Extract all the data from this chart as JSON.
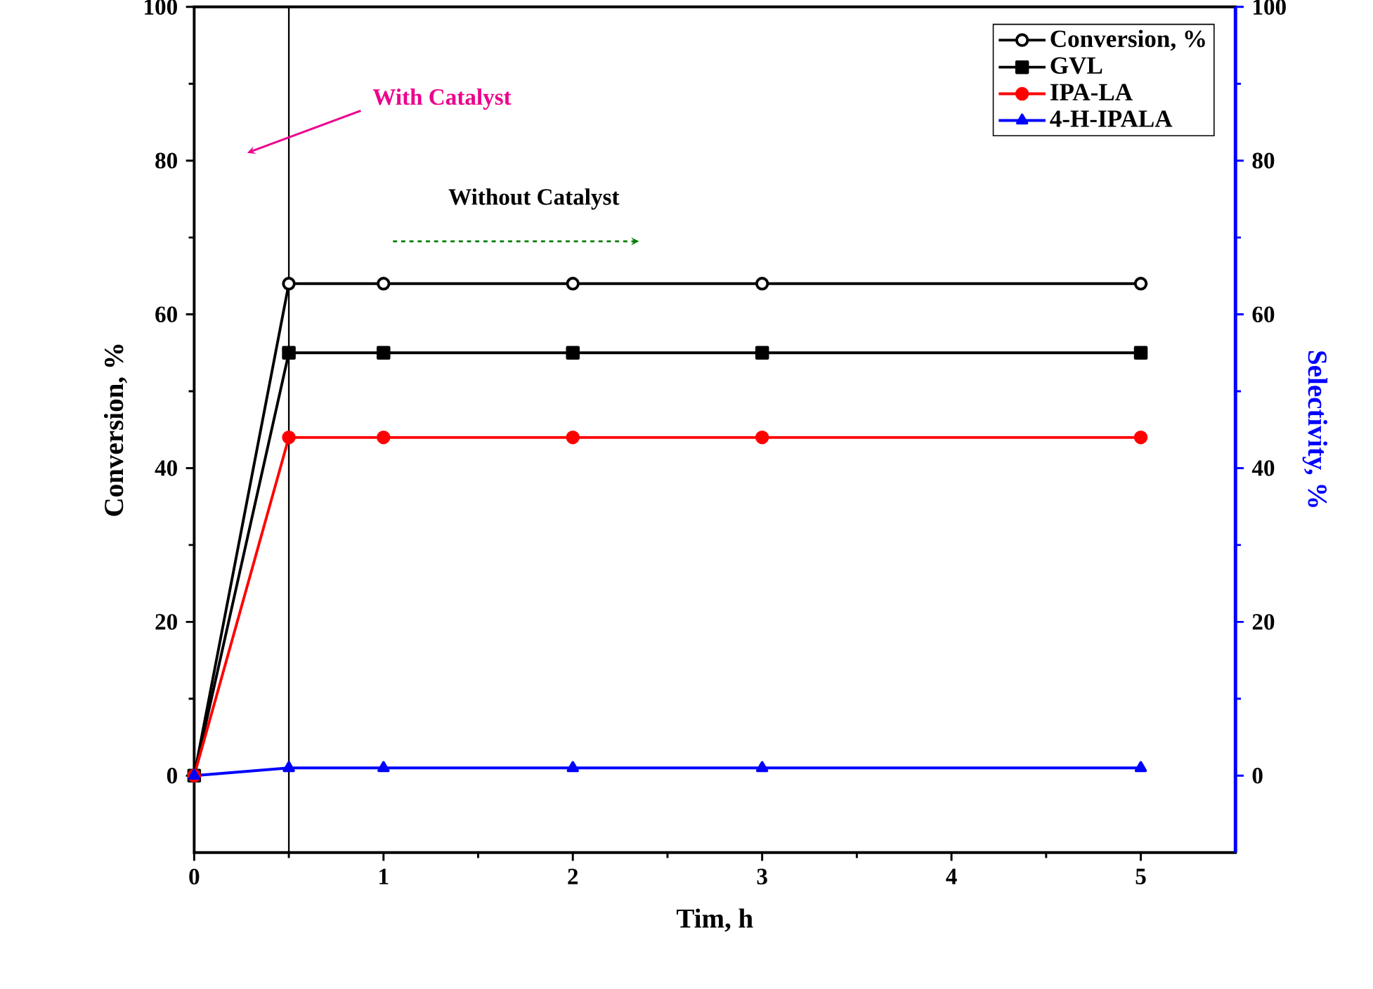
{
  "chart_data": {
    "type": "line",
    "xlabel": "Tim, h",
    "ylabel": "Conversion, %",
    "y2label": "Selectivity, %",
    "x": [
      0,
      0.5,
      1,
      2,
      3,
      5
    ],
    "series": [
      {
        "name": "Conversion, %",
        "color": "#000000",
        "marker": "circle",
        "axis": "y",
        "values": [
          0,
          64,
          64,
          64,
          64,
          64
        ]
      },
      {
        "name": "GVL",
        "color": "#000000",
        "marker": "square",
        "axis": "y2",
        "values": [
          0,
          55,
          55,
          55,
          55,
          55
        ]
      },
      {
        "name": "IPA-LA",
        "color": "#ff0000",
        "marker": "circle",
        "axis": "y2",
        "values": [
          0,
          44,
          44,
          44,
          44,
          44
        ]
      },
      {
        "name": "4-H-IPALA",
        "color": "#0000ff",
        "marker": "triangle",
        "axis": "y2",
        "values": [
          0,
          1,
          1,
          1,
          1,
          1
        ]
      }
    ],
    "xlim": [
      0,
      5.5
    ],
    "xticks": [
      0,
      1,
      2,
      3,
      4,
      5
    ],
    "ylim": [
      -10,
      100
    ],
    "yticks": [
      0,
      20,
      40,
      60,
      80,
      100
    ],
    "y2lim": [
      -10,
      100
    ],
    "y2ticks": [
      0,
      20,
      40,
      60,
      80,
      100
    ],
    "ref_lines": [
      {
        "axis": "x",
        "value": 0.5,
        "color": "#000000"
      }
    ],
    "annotations": [
      "With Catalyst",
      "Without Catalyst"
    ],
    "legend": "top right",
    "grid": false,
    "line_style": "solid"
  }
}
